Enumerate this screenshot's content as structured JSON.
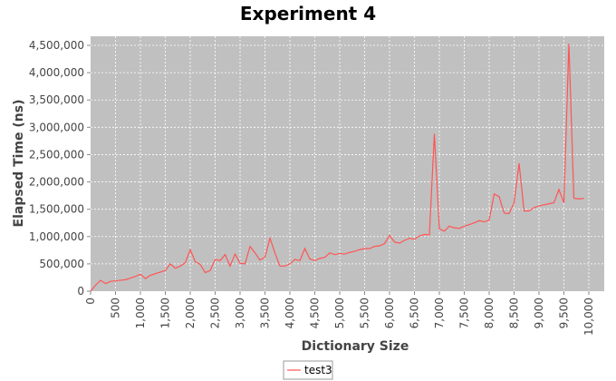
{
  "chart_data": {
    "type": "line",
    "title": "Experiment 4",
    "xlabel": "Dictionary Size",
    "ylabel": "Elapsed Time (ns)",
    "xlim": [
      0,
      10000
    ],
    "ylim": [
      0,
      4500000
    ],
    "grid": true,
    "legend_position": "bottom-center",
    "plot_background": "#c0c0c0",
    "x_ticks": [
      "0",
      "500",
      "1,000",
      "1,500",
      "2,000",
      "2,500",
      "3,000",
      "3,500",
      "4,000",
      "4,500",
      "5,000",
      "5,500",
      "6,000",
      "6,500",
      "7,000",
      "7,500",
      "8,000",
      "8,500",
      "9,000",
      "9,500",
      "10,000"
    ],
    "y_ticks": [
      "0",
      "500,000",
      "1,000,000",
      "1,500,000",
      "2,000,000",
      "2,500,000",
      "3,000,000",
      "3,500,000",
      "4,000,000",
      "4,500,000"
    ],
    "series": [
      {
        "name": "test3",
        "color": "#ff5555",
        "x": [
          0,
          100,
          200,
          300,
          400,
          500,
          600,
          700,
          800,
          900,
          1000,
          1100,
          1200,
          1300,
          1400,
          1500,
          1600,
          1700,
          1800,
          1900,
          2000,
          2100,
          2200,
          2300,
          2400,
          2500,
          2600,
          2700,
          2800,
          2900,
          3000,
          3100,
          3200,
          3300,
          3400,
          3500,
          3600,
          3700,
          3800,
          3900,
          4000,
          4100,
          4200,
          4300,
          4400,
          4500,
          4600,
          4700,
          4800,
          4900,
          5000,
          5100,
          5200,
          5300,
          5400,
          5500,
          5600,
          5700,
          5800,
          5900,
          6000,
          6100,
          6200,
          6300,
          6400,
          6500,
          6600,
          6700,
          6800,
          6900,
          7000,
          7100,
          7200,
          7300,
          7400,
          7500,
          7600,
          7700,
          7800,
          7900,
          8000,
          8100,
          8200,
          8300,
          8400,
          8500,
          8600,
          8700,
          8800,
          8900,
          9000,
          9100,
          9200,
          9300,
          9400,
          9500,
          9600,
          9700,
          9800,
          9900
        ],
        "values": [
          0,
          110000,
          200000,
          140000,
          180000,
          190000,
          200000,
          210000,
          240000,
          270000,
          310000,
          230000,
          290000,
          320000,
          350000,
          380000,
          500000,
          420000,
          460000,
          520000,
          760000,
          540000,
          490000,
          340000,
          380000,
          580000,
          560000,
          670000,
          460000,
          680000,
          510000,
          500000,
          820000,
          700000,
          570000,
          620000,
          970000,
          700000,
          460000,
          460000,
          500000,
          580000,
          560000,
          780000,
          590000,
          560000,
          600000,
          620000,
          700000,
          670000,
          690000,
          680000,
          710000,
          730000,
          760000,
          780000,
          780000,
          820000,
          830000,
          870000,
          1020000,
          900000,
          880000,
          930000,
          970000,
          950000,
          1010000,
          1040000,
          1030000,
          2880000,
          1140000,
          1100000,
          1190000,
          1160000,
          1150000,
          1190000,
          1220000,
          1250000,
          1290000,
          1270000,
          1300000,
          1780000,
          1730000,
          1430000,
          1420000,
          1620000,
          2340000,
          1470000,
          1470000,
          1530000,
          1560000,
          1580000,
          1600000,
          1620000,
          1860000,
          1620000,
          4530000,
          1700000,
          1690000,
          1700000
        ]
      }
    ]
  }
}
